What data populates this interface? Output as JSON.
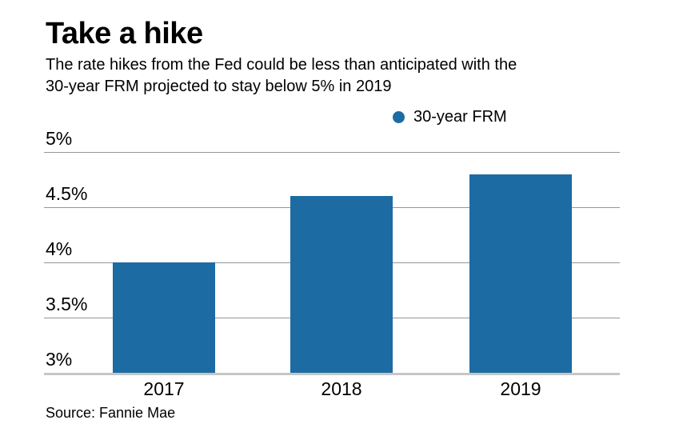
{
  "header": {
    "title": "Take a hike",
    "subtitle_line1": "The rate hikes from the Fed could be less than anticipated with the",
    "subtitle_line2": "30-year FRM projected to stay below 5% in 2019"
  },
  "legend": {
    "label": "30-year FRM"
  },
  "chart_data": {
    "type": "bar",
    "title": "Take a hike",
    "subtitle": "The rate hikes from the Fed could be less than anticipated with the 30-year FRM projected to stay below 5% in 2019",
    "categories": [
      "2017",
      "2018",
      "2019"
    ],
    "series": [
      {
        "name": "30-year FRM",
        "values": [
          4.0,
          4.6,
          4.8
        ]
      }
    ],
    "unit": "percent",
    "ylim": [
      3,
      5
    ],
    "yticks": [
      "5%",
      "4.5%",
      "4%",
      "3.5%",
      "3%"
    ],
    "ytick_values": [
      5,
      4.5,
      4,
      3.5,
      3
    ],
    "grid": true,
    "legend_position": "top-right",
    "bar_color": "#1d6ba3"
  },
  "colors": {
    "bar": "#1d6ba3",
    "gridline": "#969696",
    "baseline": "#c6c6c6",
    "text": "#000000",
    "background": "#ffffff"
  },
  "source": {
    "text": "Source: Fannie Mae"
  }
}
